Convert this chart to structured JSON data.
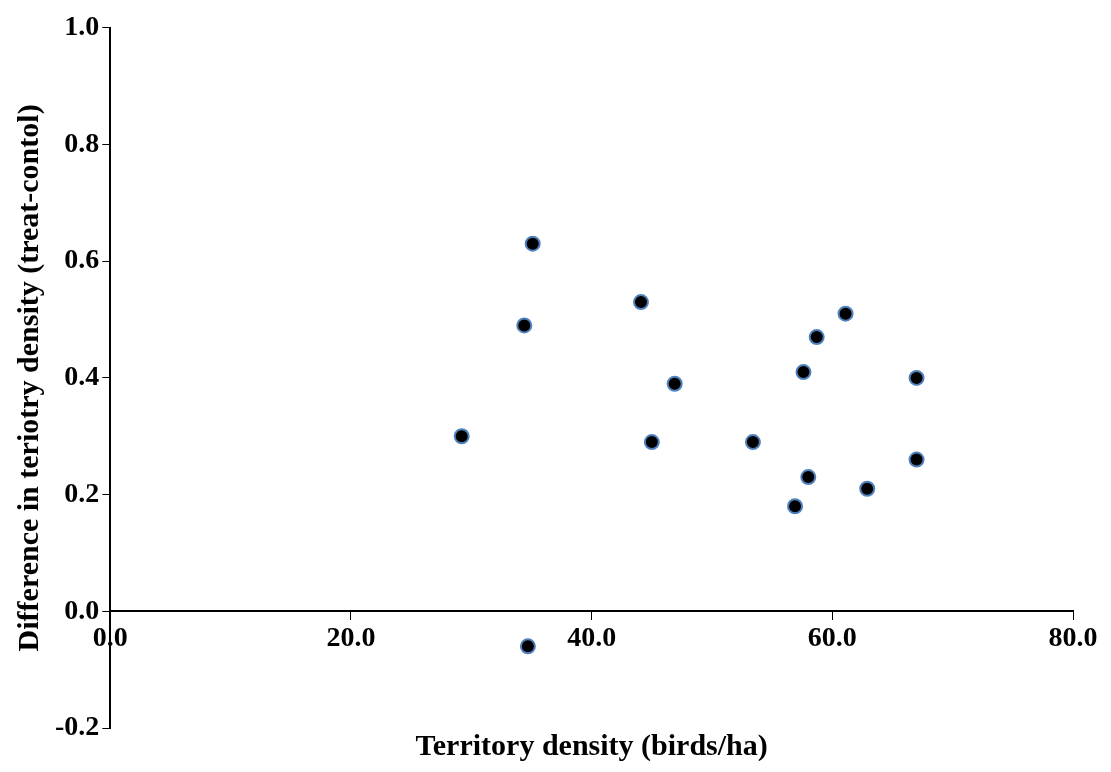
{
  "chart_data": {
    "type": "scatter",
    "xlabel": "Territory density (birds/ha)",
    "ylabel": "Difference in teriotry density (treat-contol)",
    "x": [
      29.2,
      35.1,
      34.4,
      44.1,
      45.0,
      46.9,
      53.4,
      56.9,
      57.6,
      58.0,
      58.7,
      61.1,
      62.9,
      67.0,
      67.0,
      34.7
    ],
    "values": [
      0.3,
      0.63,
      0.49,
      0.53,
      0.29,
      0.39,
      0.29,
      0.18,
      0.41,
      0.23,
      0.47,
      0.51,
      0.21,
      0.4,
      0.26,
      -0.06
    ],
    "color": "#000000",
    "marker": "circle",
    "grid": false,
    "legend": false,
    "xlim": [
      0,
      80
    ],
    "xticks": [
      {
        "value": 0,
        "label": "0.0"
      },
      {
        "value": 20,
        "label": "20.0"
      },
      {
        "value": 40,
        "label": "40.0"
      },
      {
        "value": 60,
        "label": "60.0"
      },
      {
        "value": 80,
        "label": "80.0"
      }
    ],
    "ylim": [
      -0.2,
      1.0
    ],
    "yticks": [
      {
        "value": -0.2,
        "label": "-0.2"
      },
      {
        "value": 0,
        "label": "0.0"
      },
      {
        "value": 0.2,
        "label": "0.2"
      },
      {
        "value": 0.4,
        "label": "0.4"
      },
      {
        "value": 0.6,
        "label": "0.6"
      },
      {
        "value": 0.8,
        "label": "0.8"
      },
      {
        "value": 1.0,
        "label": "1.0"
      }
    ]
  }
}
